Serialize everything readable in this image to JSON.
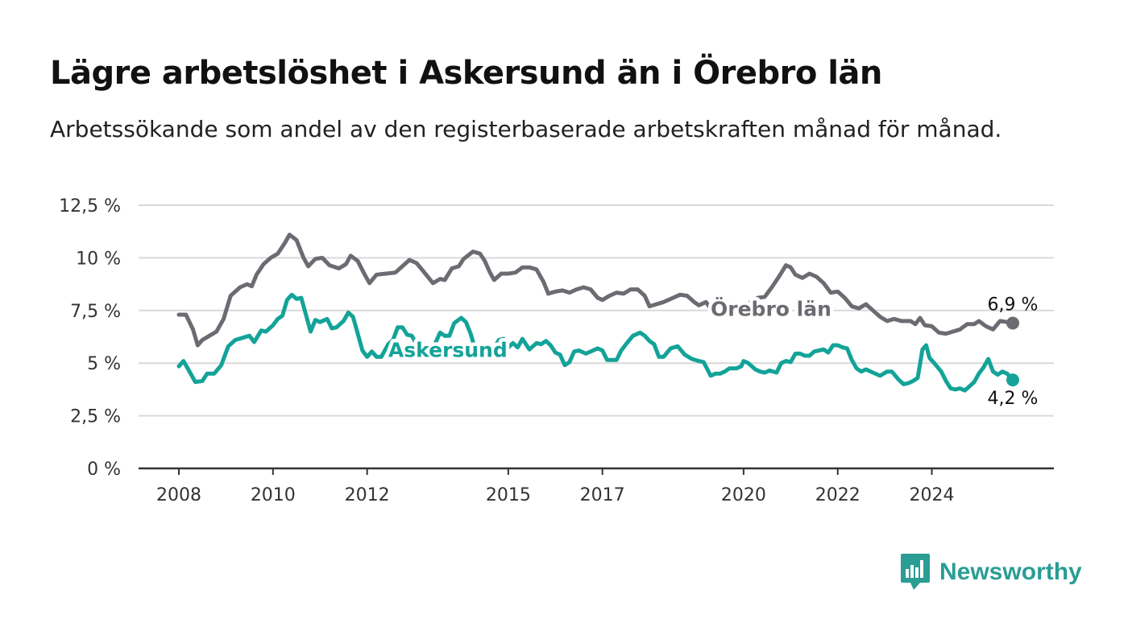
{
  "title": "Lägre arbetslöshet i Askersund än i Örebro län",
  "subtitle": "Arbetssökande som andel av den registerbaserade arbetskraften månad för månad.",
  "brand": {
    "name": "Newsworthy",
    "icon": "newsworthy-logo-icon"
  },
  "colors": {
    "orebro": "#6d6b72",
    "askersund": "#13a399",
    "grid": "#d9d9d9",
    "axis": "#333333"
  },
  "chart_data": {
    "type": "line",
    "title": "Lägre arbetslöshet i Askersund än i Örebro län",
    "subtitle": "Arbetssökande som andel av den registerbaserade arbetskraften månad för månad.",
    "xlim": [
      2008,
      2025.8
    ],
    "ylim": [
      0,
      12.5
    ],
    "grid": true,
    "x_ticks": [
      2008,
      2010,
      2012,
      2015,
      2017,
      2020,
      2022,
      2024
    ],
    "x_tick_labels": [
      "2008",
      "2010",
      "2012",
      "2015",
      "2017",
      "2020",
      "2022",
      "2024"
    ],
    "y_ticks": [
      0,
      2.5,
      5,
      7.5,
      10,
      12.5
    ],
    "y_tick_labels": [
      "0 %",
      "2,5 %",
      "5 %",
      "7,5 %",
      "10 %",
      "12,5 %"
    ],
    "series": [
      {
        "name": "Örebro län",
        "color": "#6d6b72",
        "end_label": "6,9 %",
        "points": [
          [
            2008.0,
            7.3
          ],
          [
            2008.15,
            7.3
          ],
          [
            2008.3,
            6.6
          ],
          [
            2008.4,
            5.85
          ],
          [
            2008.5,
            6.1
          ],
          [
            2008.65,
            6.3
          ],
          [
            2008.8,
            6.5
          ],
          [
            2008.95,
            7.1
          ],
          [
            2009.1,
            8.2
          ],
          [
            2009.3,
            8.6
          ],
          [
            2009.45,
            8.75
          ],
          [
            2009.55,
            8.65
          ],
          [
            2009.65,
            9.2
          ],
          [
            2009.8,
            9.7
          ],
          [
            2009.95,
            10.0
          ],
          [
            2010.1,
            10.2
          ],
          [
            2010.25,
            10.7
          ],
          [
            2010.35,
            11.1
          ],
          [
            2010.5,
            10.85
          ],
          [
            2010.65,
            10.0
          ],
          [
            2010.75,
            9.6
          ],
          [
            2010.9,
            9.95
          ],
          [
            2011.05,
            10.0
          ],
          [
            2011.2,
            9.65
          ],
          [
            2011.4,
            9.5
          ],
          [
            2011.55,
            9.7
          ],
          [
            2011.65,
            10.1
          ],
          [
            2011.8,
            9.85
          ],
          [
            2011.95,
            9.2
          ],
          [
            2012.05,
            8.8
          ],
          [
            2012.2,
            9.2
          ],
          [
            2012.4,
            9.25
          ],
          [
            2012.6,
            9.3
          ],
          [
            2012.75,
            9.6
          ],
          [
            2012.9,
            9.9
          ],
          [
            2013.05,
            9.75
          ],
          [
            2013.2,
            9.35
          ],
          [
            2013.4,
            8.8
          ],
          [
            2013.55,
            9.0
          ],
          [
            2013.65,
            8.95
          ],
          [
            2013.8,
            9.5
          ],
          [
            2013.95,
            9.6
          ],
          [
            2014.05,
            9.95
          ],
          [
            2014.25,
            10.3
          ],
          [
            2014.4,
            10.2
          ],
          [
            2014.5,
            9.85
          ],
          [
            2014.6,
            9.35
          ],
          [
            2014.7,
            8.95
          ],
          [
            2014.85,
            9.25
          ],
          [
            2015.0,
            9.25
          ],
          [
            2015.15,
            9.3
          ],
          [
            2015.3,
            9.55
          ],
          [
            2015.45,
            9.55
          ],
          [
            2015.6,
            9.45
          ],
          [
            2015.75,
            8.85
          ],
          [
            2015.85,
            8.3
          ],
          [
            2016.0,
            8.4
          ],
          [
            2016.15,
            8.45
          ],
          [
            2016.3,
            8.35
          ],
          [
            2016.45,
            8.5
          ],
          [
            2016.6,
            8.6
          ],
          [
            2016.75,
            8.5
          ],
          [
            2016.9,
            8.1
          ],
          [
            2017.0,
            8.0
          ],
          [
            2017.15,
            8.2
          ],
          [
            2017.3,
            8.35
          ],
          [
            2017.45,
            8.3
          ],
          [
            2017.6,
            8.5
          ],
          [
            2017.75,
            8.5
          ],
          [
            2017.9,
            8.2
          ],
          [
            2018.0,
            7.7
          ],
          [
            2018.15,
            7.8
          ],
          [
            2018.3,
            7.9
          ],
          [
            2018.5,
            8.1
          ],
          [
            2018.65,
            8.25
          ],
          [
            2018.8,
            8.2
          ],
          [
            2018.95,
            7.9
          ],
          [
            2019.05,
            7.75
          ],
          [
            2019.2,
            7.9
          ],
          [
            2019.3,
            7.6
          ],
          [
            2019.5,
            7.65
          ],
          [
            2019.65,
            7.85
          ],
          [
            2020.0,
            7.55
          ],
          [
            2020.15,
            7.9
          ],
          [
            2020.3,
            8.1
          ],
          [
            2020.45,
            8.15
          ],
          [
            2020.6,
            8.6
          ],
          [
            2020.75,
            9.1
          ],
          [
            2020.9,
            9.65
          ],
          [
            2021.0,
            9.55
          ],
          [
            2021.1,
            9.2
          ],
          [
            2021.25,
            9.05
          ],
          [
            2021.4,
            9.25
          ],
          [
            2021.55,
            9.1
          ],
          [
            2021.7,
            8.8
          ],
          [
            2021.85,
            8.35
          ],
          [
            2022.0,
            8.4
          ],
          [
            2022.15,
            8.1
          ],
          [
            2022.3,
            7.7
          ],
          [
            2022.45,
            7.6
          ],
          [
            2022.6,
            7.8
          ],
          [
            2022.75,
            7.5
          ],
          [
            2022.9,
            7.2
          ],
          [
            2023.05,
            7.0
          ],
          [
            2023.2,
            7.1
          ],
          [
            2023.35,
            7.0
          ],
          [
            2023.55,
            7.0
          ],
          [
            2023.65,
            6.85
          ],
          [
            2023.75,
            7.15
          ],
          [
            2023.85,
            6.8
          ],
          [
            2024.0,
            6.75
          ],
          [
            2024.15,
            6.45
          ],
          [
            2024.3,
            6.4
          ],
          [
            2024.45,
            6.5
          ],
          [
            2024.6,
            6.6
          ],
          [
            2024.75,
            6.85
          ],
          [
            2024.9,
            6.85
          ],
          [
            2025.0,
            7.0
          ],
          [
            2025.15,
            6.75
          ],
          [
            2025.3,
            6.6
          ],
          [
            2025.45,
            7.0
          ],
          [
            2025.6,
            6.95
          ],
          [
            2025.72,
            6.9
          ]
        ]
      },
      {
        "name": "Askersund",
        "color": "#13a399",
        "end_label": "4,2 %",
        "points": [
          [
            2008.0,
            4.85
          ],
          [
            2008.1,
            5.1
          ],
          [
            2008.2,
            4.7
          ],
          [
            2008.35,
            4.1
          ],
          [
            2008.5,
            4.15
          ],
          [
            2008.6,
            4.5
          ],
          [
            2008.75,
            4.5
          ],
          [
            2008.9,
            4.9
          ],
          [
            2009.05,
            5.8
          ],
          [
            2009.2,
            6.1
          ],
          [
            2009.35,
            6.2
          ],
          [
            2009.5,
            6.3
          ],
          [
            2009.6,
            6.0
          ],
          [
            2009.75,
            6.55
          ],
          [
            2009.85,
            6.5
          ],
          [
            2010.0,
            6.8
          ],
          [
            2010.1,
            7.1
          ],
          [
            2010.2,
            7.25
          ],
          [
            2010.3,
            8.0
          ],
          [
            2010.4,
            8.25
          ],
          [
            2010.5,
            8.05
          ],
          [
            2010.6,
            8.1
          ],
          [
            2010.7,
            7.3
          ],
          [
            2010.8,
            6.5
          ],
          [
            2010.9,
            7.05
          ],
          [
            2011.0,
            6.95
          ],
          [
            2011.15,
            7.1
          ],
          [
            2011.25,
            6.65
          ],
          [
            2011.35,
            6.7
          ],
          [
            2011.5,
            7.0
          ],
          [
            2011.6,
            7.4
          ],
          [
            2011.7,
            7.2
          ],
          [
            2011.8,
            6.4
          ],
          [
            2011.9,
            5.6
          ],
          [
            2012.0,
            5.3
          ],
          [
            2012.1,
            5.55
          ],
          [
            2012.2,
            5.3
          ],
          [
            2012.3,
            5.3
          ],
          [
            2012.45,
            5.9
          ],
          [
            2012.55,
            6.1
          ],
          [
            2012.65,
            6.7
          ],
          [
            2012.75,
            6.7
          ],
          [
            2012.85,
            6.35
          ],
          [
            2012.95,
            6.3
          ],
          [
            2013.05,
            5.9
          ],
          [
            2013.15,
            5.5
          ],
          [
            2013.25,
            5.3
          ],
          [
            2013.35,
            5.5
          ],
          [
            2013.45,
            5.95
          ],
          [
            2013.55,
            6.45
          ],
          [
            2013.65,
            6.3
          ],
          [
            2013.75,
            6.3
          ],
          [
            2013.85,
            6.9
          ],
          [
            2014.0,
            7.15
          ],
          [
            2014.1,
            6.95
          ],
          [
            2014.2,
            6.4
          ],
          [
            2014.3,
            5.65
          ],
          [
            2014.4,
            5.5
          ],
          [
            2014.5,
            5.5
          ],
          [
            2014.6,
            5.8
          ],
          [
            2014.7,
            5.7
          ],
          [
            2014.8,
            6.1
          ],
          [
            2014.9,
            6.15
          ],
          [
            2015.0,
            5.75
          ],
          [
            2015.1,
            5.95
          ],
          [
            2015.2,
            5.75
          ],
          [
            2015.3,
            6.15
          ],
          [
            2015.45,
            5.65
          ],
          [
            2015.6,
            5.95
          ],
          [
            2015.7,
            5.9
          ],
          [
            2015.8,
            6.05
          ],
          [
            2015.9,
            5.85
          ],
          [
            2016.0,
            5.5
          ],
          [
            2016.1,
            5.4
          ],
          [
            2016.2,
            4.9
          ],
          [
            2016.3,
            5.05
          ],
          [
            2016.4,
            5.55
          ],
          [
            2016.5,
            5.6
          ],
          [
            2016.65,
            5.45
          ],
          [
            2016.8,
            5.6
          ],
          [
            2016.9,
            5.7
          ],
          [
            2017.0,
            5.6
          ],
          [
            2017.1,
            5.15
          ],
          [
            2017.2,
            5.15
          ],
          [
            2017.3,
            5.15
          ],
          [
            2017.4,
            5.6
          ],
          [
            2017.5,
            5.9
          ],
          [
            2017.65,
            6.3
          ],
          [
            2017.8,
            6.45
          ],
          [
            2017.9,
            6.3
          ],
          [
            2018.0,
            6.05
          ],
          [
            2018.1,
            5.9
          ],
          [
            2018.2,
            5.3
          ],
          [
            2018.3,
            5.3
          ],
          [
            2018.45,
            5.7
          ],
          [
            2018.6,
            5.8
          ],
          [
            2018.75,
            5.4
          ],
          [
            2018.9,
            5.2
          ],
          [
            2019.05,
            5.1
          ],
          [
            2019.15,
            5.05
          ],
          [
            2019.3,
            4.4
          ],
          [
            2019.4,
            4.5
          ],
          [
            2019.5,
            4.5
          ],
          [
            2019.6,
            4.6
          ],
          [
            2019.7,
            4.75
          ],
          [
            2019.85,
            4.75
          ],
          [
            2019.95,
            4.85
          ],
          [
            2020.0,
            5.1
          ],
          [
            2020.1,
            5.0
          ],
          [
            2020.25,
            4.7
          ],
          [
            2020.35,
            4.6
          ],
          [
            2020.45,
            4.55
          ],
          [
            2020.55,
            4.65
          ],
          [
            2020.7,
            4.55
          ],
          [
            2020.8,
            5.0
          ],
          [
            2020.9,
            5.1
          ],
          [
            2021.0,
            5.05
          ],
          [
            2021.1,
            5.45
          ],
          [
            2021.2,
            5.45
          ],
          [
            2021.3,
            5.35
          ],
          [
            2021.4,
            5.35
          ],
          [
            2021.5,
            5.55
          ],
          [
            2021.6,
            5.6
          ],
          [
            2021.7,
            5.65
          ],
          [
            2021.8,
            5.5
          ],
          [
            2021.9,
            5.85
          ],
          [
            2022.0,
            5.85
          ],
          [
            2022.1,
            5.75
          ],
          [
            2022.2,
            5.7
          ],
          [
            2022.3,
            5.15
          ],
          [
            2022.4,
            4.75
          ],
          [
            2022.5,
            4.6
          ],
          [
            2022.6,
            4.7
          ],
          [
            2022.75,
            4.55
          ],
          [
            2022.9,
            4.4
          ],
          [
            2023.05,
            4.6
          ],
          [
            2023.15,
            4.6
          ],
          [
            2023.3,
            4.2
          ],
          [
            2023.4,
            4.0
          ],
          [
            2023.5,
            4.05
          ],
          [
            2023.6,
            4.15
          ],
          [
            2023.7,
            4.3
          ],
          [
            2023.8,
            5.65
          ],
          [
            2023.88,
            5.85
          ],
          [
            2023.95,
            5.25
          ],
          [
            2024.05,
            5.0
          ],
          [
            2024.2,
            4.6
          ],
          [
            2024.3,
            4.15
          ],
          [
            2024.4,
            3.8
          ],
          [
            2024.5,
            3.75
          ],
          [
            2024.6,
            3.8
          ],
          [
            2024.7,
            3.7
          ],
          [
            2024.8,
            3.9
          ],
          [
            2024.9,
            4.1
          ],
          [
            2025.0,
            4.5
          ],
          [
            2025.1,
            4.8
          ],
          [
            2025.2,
            5.2
          ],
          [
            2025.3,
            4.6
          ],
          [
            2025.4,
            4.45
          ],
          [
            2025.5,
            4.6
          ],
          [
            2025.6,
            4.5
          ],
          [
            2025.72,
            4.2
          ]
        ]
      }
    ],
    "annotations": [
      {
        "text": "Örebro län",
        "series": "Örebro län",
        "x": 2019.3,
        "y": 7.25
      },
      {
        "text": "Askersund",
        "series": "Askersund",
        "x": 2012.45,
        "y": 5.3
      }
    ]
  }
}
